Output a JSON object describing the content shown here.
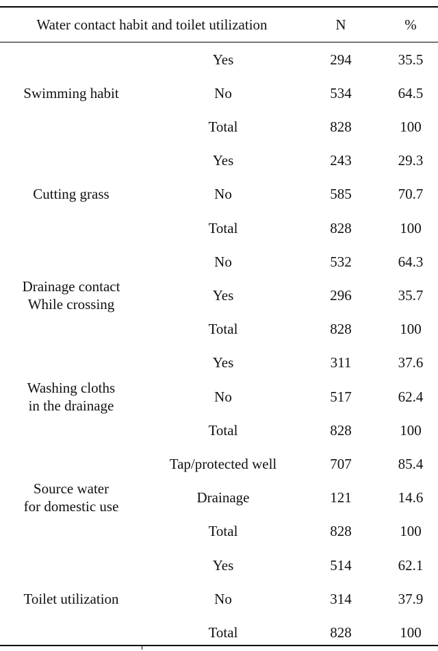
{
  "header": {
    "title": "Water contact habit and toilet utilization",
    "n": "N",
    "pct": "%"
  },
  "groups": [
    {
      "label": "Swimming habit",
      "label_lines": [
        "Swimming habit"
      ],
      "rows": [
        {
          "cat": "Yes",
          "n": "294",
          "pct": "35.5"
        },
        {
          "cat": "No",
          "n": "534",
          "pct": "64.5"
        },
        {
          "cat": "Total",
          "n": "828",
          "pct": "100"
        }
      ]
    },
    {
      "label": "Cutting grass",
      "label_lines": [
        "Cutting grass"
      ],
      "rows": [
        {
          "cat": "Yes",
          "n": "243",
          "pct": "29.3"
        },
        {
          "cat": "No",
          "n": "585",
          "pct": "70.7"
        },
        {
          "cat": "Total",
          "n": "828",
          "pct": "100"
        }
      ]
    },
    {
      "label": "Drainage contact While crossing",
      "label_lines": [
        "Drainage contact",
        "While crossing"
      ],
      "rows": [
        {
          "cat": "No",
          "n": "532",
          "pct": "64.3"
        },
        {
          "cat": "Yes",
          "n": "296",
          "pct": "35.7"
        },
        {
          "cat": "Total",
          "n": "828",
          "pct": "100"
        }
      ]
    },
    {
      "label": "Washing cloths in the drainage",
      "label_lines": [
        "Washing cloths",
        "in the drainage"
      ],
      "rows": [
        {
          "cat": "Yes",
          "n": "311",
          "pct": "37.6"
        },
        {
          "cat": "No",
          "n": "517",
          "pct": "62.4"
        },
        {
          "cat": "Total",
          "n": "828",
          "pct": "100"
        }
      ]
    },
    {
      "label": "Source water for domestic use",
      "label_lines": [
        "Source water",
        "for domestic use"
      ],
      "rows": [
        {
          "cat": "Tap/protected well",
          "n": "707",
          "pct": "85.4"
        },
        {
          "cat": "Drainage",
          "n": "121",
          "pct": "14.6"
        },
        {
          "cat": "Total",
          "n": "828",
          "pct": "100"
        }
      ]
    },
    {
      "label": "Toilet utilization",
      "label_lines": [
        "Toilet utilization"
      ],
      "rows": [
        {
          "cat": "Yes",
          "n": "514",
          "pct": "62.1"
        },
        {
          "cat": "No",
          "n": "314",
          "pct": "37.9"
        },
        {
          "cat": "Total",
          "n": "828",
          "pct": "100"
        }
      ]
    }
  ]
}
